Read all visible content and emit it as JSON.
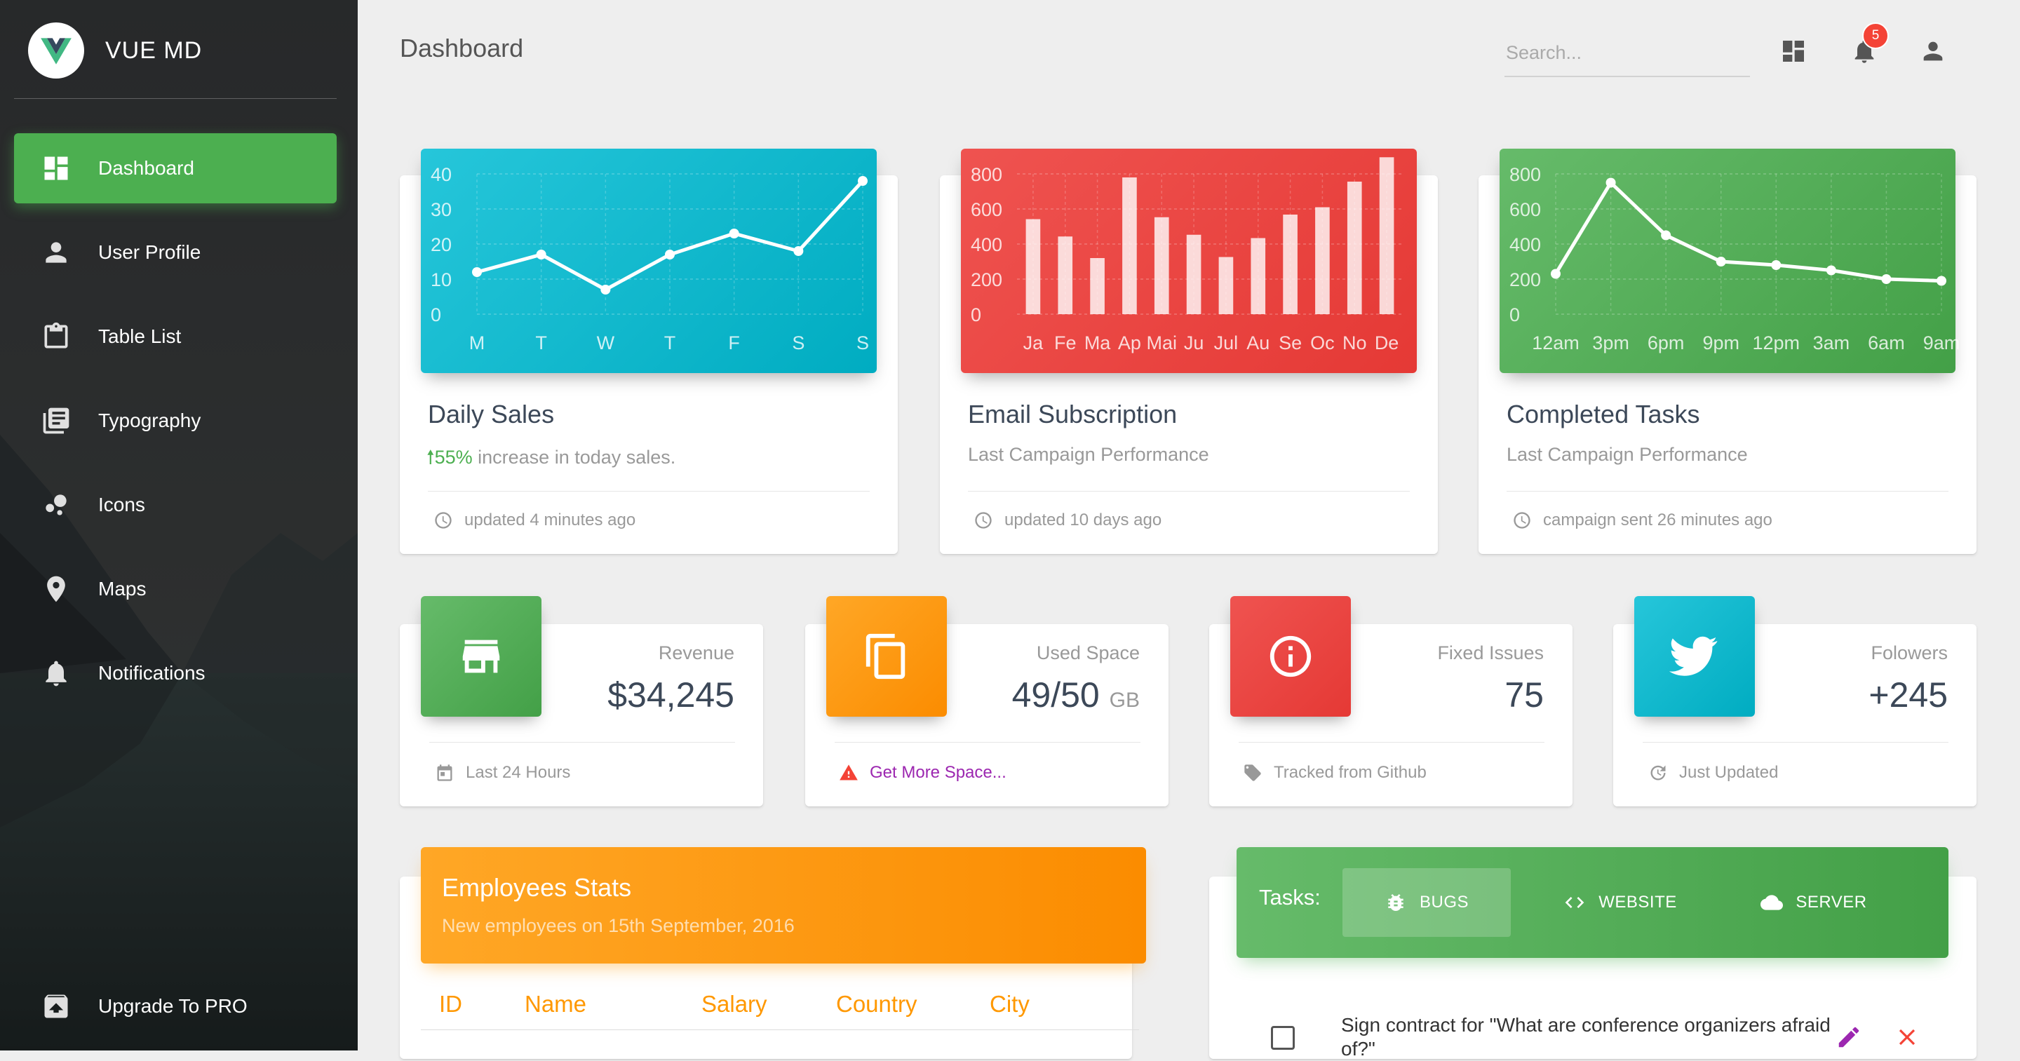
{
  "brand": {
    "name": "VUE MD",
    "accent": "#4caf50"
  },
  "sidebar": {
    "items": [
      {
        "label": "Dashboard",
        "icon": "dashboard-icon",
        "active": true
      },
      {
        "label": "User Profile",
        "icon": "person-icon"
      },
      {
        "label": "Table List",
        "icon": "clipboard-icon"
      },
      {
        "label": "Typography",
        "icon": "library-books-icon"
      },
      {
        "label": "Icons",
        "icon": "bubble-chart-icon"
      },
      {
        "label": "Maps",
        "icon": "location-icon"
      },
      {
        "label": "Notifications",
        "icon": "bell-icon"
      }
    ],
    "upgrade_label": "Upgrade To PRO"
  },
  "header": {
    "title": "Dashboard",
    "search_placeholder": "Search...",
    "notification_count": "5"
  },
  "charts": {
    "daily_sales": {
      "title": "Daily Sales",
      "sub_pct": "55%",
      "sub_text": " increase in today sales.",
      "footer": "updated 4 minutes ago",
      "color": "#26c6da"
    },
    "email_subscription": {
      "title": "Email Subscription",
      "sub": "Last Campaign Performance",
      "footer": "updated 10 days ago",
      "color": "#ef5350"
    },
    "completed_tasks": {
      "title": "Completed Tasks",
      "sub": "Last Campaign Performance",
      "footer": "campaign sent 26 minutes ago",
      "color": "#66bb6a"
    }
  },
  "chart_data": [
    {
      "type": "line",
      "categories": [
        "M",
        "T",
        "W",
        "T",
        "F",
        "S",
        "S"
      ],
      "values": [
        12,
        17,
        7,
        17,
        23,
        18,
        38
      ],
      "yticks": [
        0,
        10,
        20,
        30,
        40
      ],
      "ylim": [
        0,
        40
      ],
      "grid": true
    },
    {
      "type": "bar",
      "categories": [
        "Ja",
        "Fe",
        "Ma",
        "Ap",
        "Mai",
        "Ju",
        "Jul",
        "Au",
        "Se",
        "Oc",
        "No",
        "De"
      ],
      "values": [
        542,
        443,
        320,
        780,
        553,
        453,
        326,
        434,
        568,
        610,
        756,
        895
      ],
      "yticks": [
        0,
        200,
        400,
        600,
        800
      ],
      "ylim": [
        0,
        800
      ],
      "grid": true
    },
    {
      "type": "line",
      "categories": [
        "12am",
        "3pm",
        "6pm",
        "9pm",
        "12pm",
        "3am",
        "6am",
        "9am"
      ],
      "values": [
        230,
        750,
        450,
        300,
        280,
        250,
        200,
        190
      ],
      "yticks": [
        0,
        200,
        400,
        600,
        800
      ],
      "ylim": [
        0,
        800
      ],
      "grid": true
    }
  ],
  "stats": [
    {
      "label": "Revenue",
      "value": "$34,245",
      "unit": "",
      "footer": "Last 24 Hours",
      "icon": "store-icon",
      "footer_icon": "calendar-icon",
      "color": "#4caf50"
    },
    {
      "label": "Used Space",
      "value": "49/50",
      "unit": "GB",
      "footer": "Get More Space...",
      "icon": "copy-icon",
      "footer_icon": "warning-icon",
      "color": "#ff9800"
    },
    {
      "label": "Fixed Issues",
      "value": "75",
      "unit": "",
      "footer": "Tracked from Github",
      "icon": "info-icon",
      "footer_icon": "tag-icon",
      "color": "#f44336"
    },
    {
      "label": "Folowers",
      "value": "+245",
      "unit": "",
      "footer": "Just Updated",
      "icon": "twitter-icon",
      "footer_icon": "update-icon",
      "color": "#26c6da"
    }
  ],
  "employees": {
    "title": "Employees Stats",
    "subtitle": "New employees on 15th September, 2016",
    "columns": [
      "ID",
      "Name",
      "Salary",
      "Country",
      "City"
    ]
  },
  "tasks": {
    "label": "Tasks:",
    "tabs": [
      {
        "label": "BUGS",
        "icon": "bug-icon",
        "active": true
      },
      {
        "label": "WEBSITE",
        "icon": "code-icon"
      },
      {
        "label": "SERVER",
        "icon": "cloud-icon"
      }
    ],
    "items": [
      {
        "text": "Sign contract for \"What are conference organizers afraid of?\""
      }
    ]
  }
}
